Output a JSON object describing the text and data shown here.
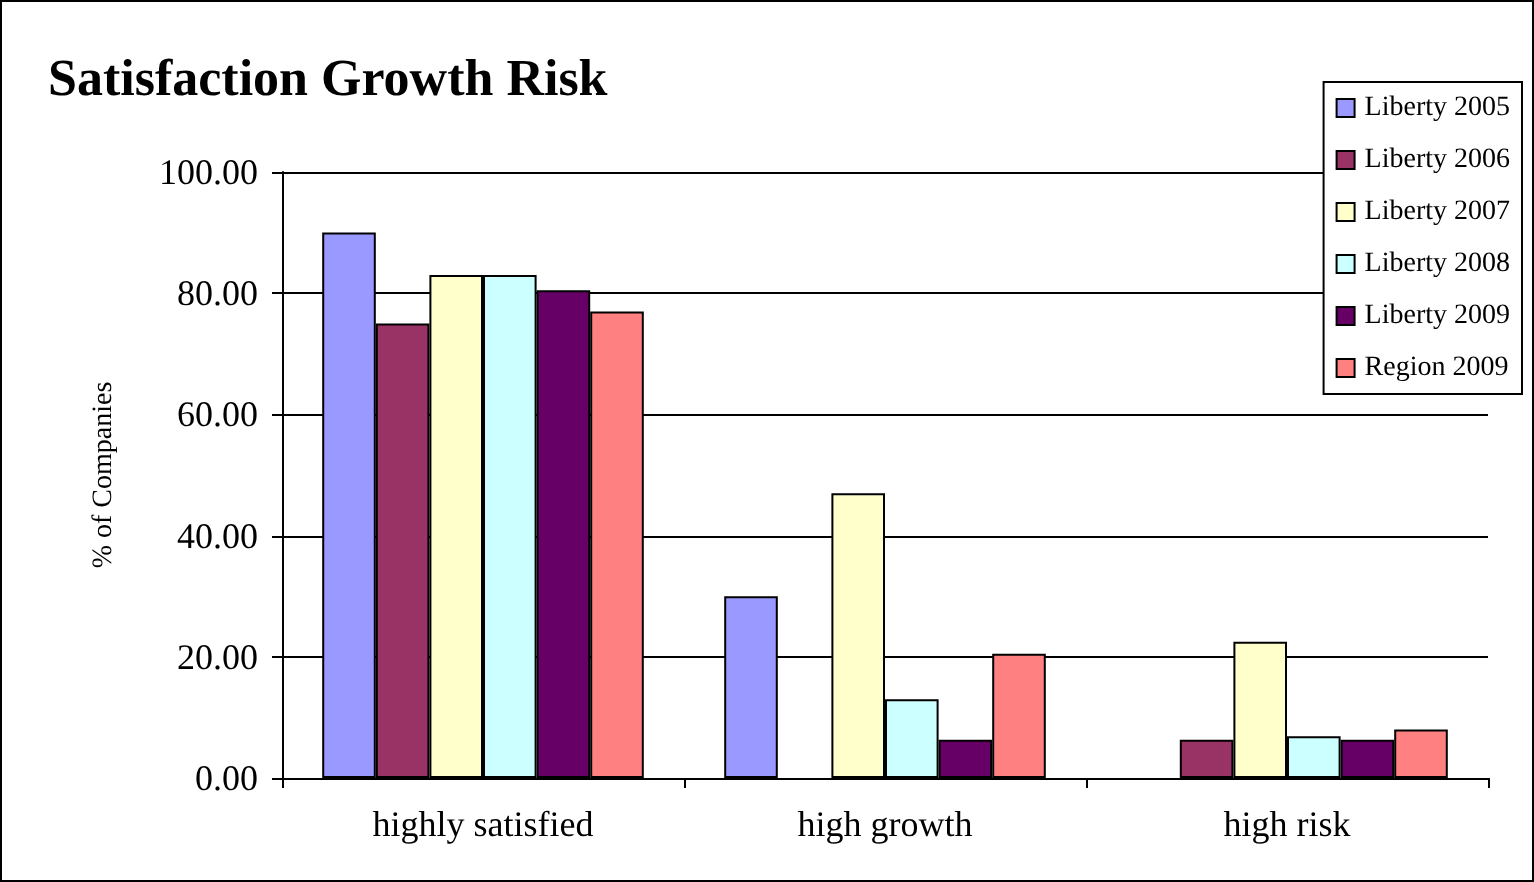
{
  "chart_data": {
    "type": "bar",
    "title": "Satisfaction Growth Risk",
    "ylabel": "% of Companies",
    "categories": [
      "highly satisfied",
      "high growth",
      "high risk"
    ],
    "series": [
      {
        "name": "Liberty 2005",
        "color": "#9999ff",
        "values": [
          90,
          30,
          null
        ]
      },
      {
        "name": "Liberty 2006",
        "color": "#993366",
        "values": [
          75,
          null,
          6.3
        ]
      },
      {
        "name": "Liberty 2007",
        "color": "#ffffcc",
        "values": [
          83,
          47,
          22.5
        ]
      },
      {
        "name": "Liberty 2008",
        "color": "#ccffff",
        "values": [
          83,
          13,
          6.9
        ]
      },
      {
        "name": "Liberty 2009",
        "color": "#660066",
        "values": [
          80.5,
          6.3,
          6.3
        ]
      },
      {
        "name": "Region 2009",
        "color": "#ff8080",
        "values": [
          77,
          20.5,
          8
        ]
      }
    ],
    "ylim": [
      0,
      100
    ],
    "yticks": [
      {
        "value": 0,
        "label": "0.00"
      },
      {
        "value": 20,
        "label": "20.00"
      },
      {
        "value": 40,
        "label": "40.00"
      },
      {
        "value": 60,
        "label": "60.00"
      },
      {
        "value": 80,
        "label": "80.00"
      },
      {
        "value": 100,
        "label": "100.00"
      }
    ],
    "grid": "y",
    "legend": "top right"
  }
}
